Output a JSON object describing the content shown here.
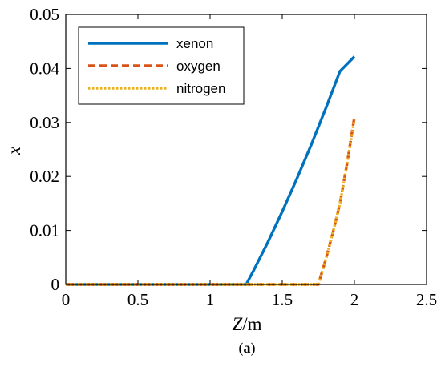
{
  "chart_data": {
    "type": "line",
    "xlabel_italic": "Z",
    "xlabel_rest": "/m",
    "ylabel": "x",
    "caption_open": "(",
    "caption_letter": "a",
    "caption_close": ")",
    "xlim": [
      0,
      2.5
    ],
    "ylim": [
      0,
      0.05
    ],
    "xticks": [
      0,
      0.5,
      1,
      1.5,
      2,
      2.5
    ],
    "xtick_labels": [
      "0",
      "0.5",
      "1",
      "1.5",
      "2",
      "2.5"
    ],
    "yticks": [
      0,
      0.01,
      0.02,
      0.03,
      0.04,
      0.05
    ],
    "ytick_labels": [
      "0",
      "0.01",
      "0.02",
      "0.03",
      "0.04",
      "0.05"
    ],
    "grid": false,
    "legend_position": "top-left",
    "series": [
      {
        "name": "xenon",
        "color": "#0072BD",
        "style": "solid",
        "x": [
          0,
          1.25,
          1.3,
          1.4,
          1.5,
          1.6,
          1.7,
          1.8,
          1.9,
          2.0
        ],
        "y": [
          0,
          0,
          0.0025,
          0.0078,
          0.0135,
          0.0195,
          0.0258,
          0.0325,
          0.0395,
          0.0422
        ]
      },
      {
        "name": "oxygen",
        "color": "#D95319",
        "style": "dashed",
        "x": [
          0,
          1.75,
          1.8,
          1.85,
          1.9,
          1.95,
          2.0
        ],
        "y": [
          0,
          0,
          0.0045,
          0.0095,
          0.015,
          0.0225,
          0.031
        ]
      },
      {
        "name": "nitrogen",
        "color": "#EDB120",
        "style": "dotted",
        "x": [
          0,
          1.75,
          1.8,
          1.85,
          1.9,
          1.95,
          2.0
        ],
        "y": [
          0,
          0,
          0.0045,
          0.0095,
          0.015,
          0.0225,
          0.0305
        ]
      }
    ]
  }
}
